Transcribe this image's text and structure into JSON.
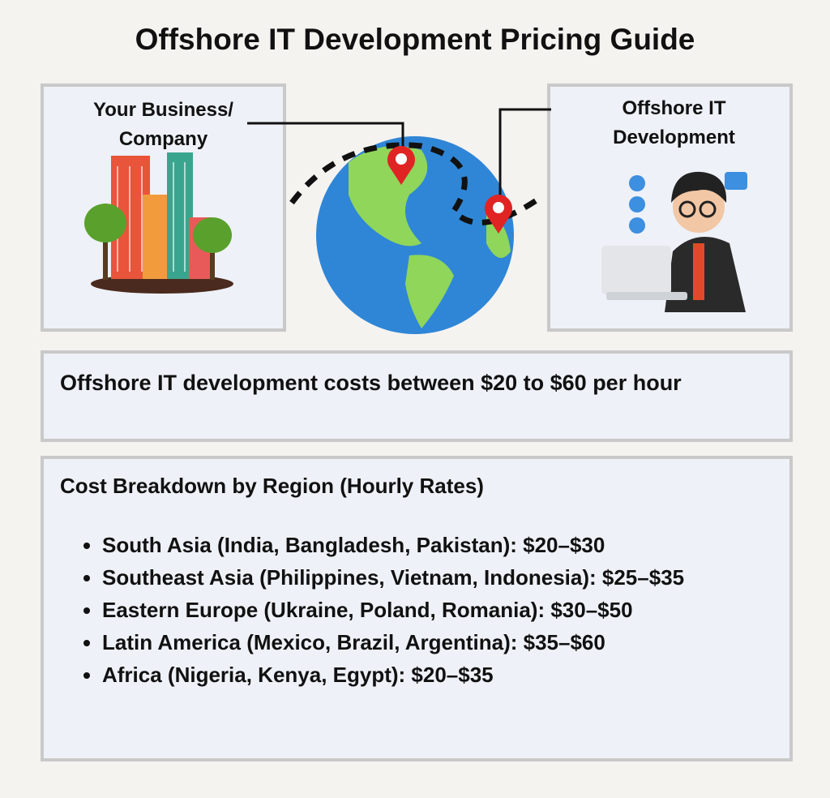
{
  "title": "Offshore IT Development Pricing Guide",
  "left_box": {
    "label_lines": [
      "Your Business/",
      "Company"
    ]
  },
  "right_box": {
    "label_lines": [
      "Offshore IT",
      "Development"
    ]
  },
  "summary": {
    "text": "Offshore IT development costs between $20 to $60 per hour"
  },
  "breakdown": {
    "heading": "Cost Breakdown by Region (Hourly Rates)",
    "items": [
      "South Asia (India, Bangladesh, Pakistan): $20–$30",
      "Southeast Asia (Philippines, Vietnam, Indonesia): $25–$35",
      "Eastern Europe (Ukraine, Poland, Romania): $30–$50",
      "Latin America (Mexico, Brazil, Argentina): $35–$60",
      "Africa (Nigeria, Kenya, Egypt): $20–$35"
    ]
  }
}
